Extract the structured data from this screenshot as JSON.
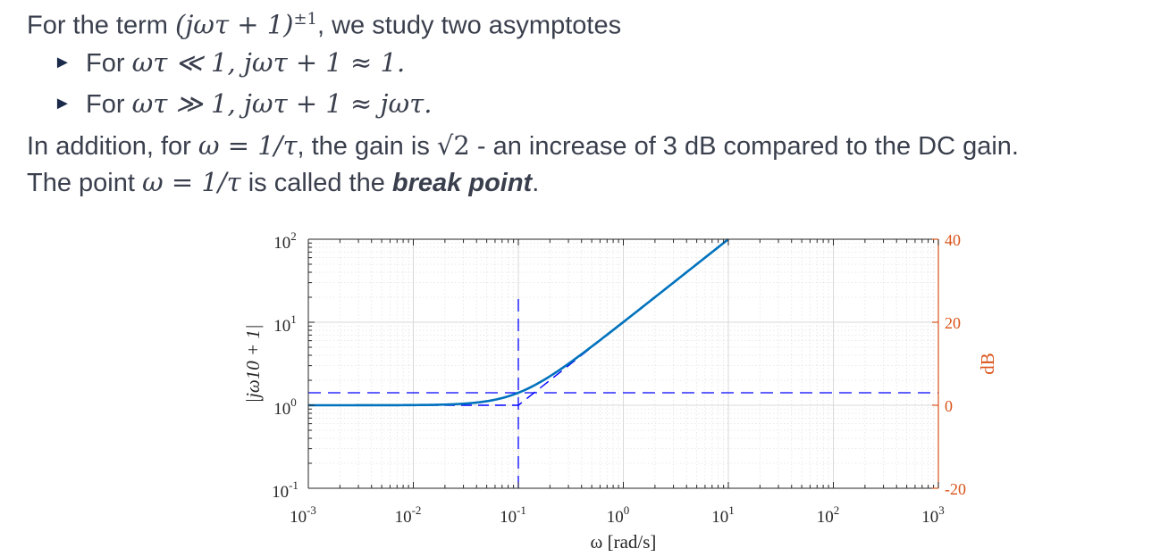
{
  "text": {
    "intro_a": "For the term ",
    "intro_expr": "(jωτ + 1)",
    "intro_sup": "±1",
    "intro_b": ", we study two asymptotes",
    "b1_a": "For ",
    "b1_expr": "ωτ ≪ 1, jωτ + 1 ≈ 1.",
    "b2_a": "For ",
    "b2_expr": "ωτ ≫ 1, jωτ + 1 ≈ jωτ.",
    "add_a": "In addition, for ",
    "add_expr": "ω = 1/τ",
    "add_b": ", the gain is ",
    "add_sqrt": "√2",
    "add_c": " - an increase of 3 dB compared to the DC gain.",
    "bp_a": "The point ",
    "bp_expr": "ω = 1/τ",
    "bp_b": " is called the ",
    "bp_bold": "break point",
    "bp_c": "."
  },
  "chart_data": {
    "type": "line",
    "xscale": "log",
    "yscale": "log",
    "xlim": [
      0.001,
      1000
    ],
    "ylim_left": [
      0.1,
      100
    ],
    "ylim_right": [
      -20,
      40
    ],
    "xlabel": "ω [rad/s]",
    "ylabel_left": "|jω10 + 1|",
    "ylabel_right": "dB",
    "grid": true,
    "x_ticks": [
      {
        "base": "10",
        "exp": "-3",
        "value": 0.001
      },
      {
        "base": "10",
        "exp": "-2",
        "value": 0.01
      },
      {
        "base": "10",
        "exp": "-1",
        "value": 0.1
      },
      {
        "base": "10",
        "exp": "0",
        "value": 1
      },
      {
        "base": "10",
        "exp": "1",
        "value": 10
      },
      {
        "base": "10",
        "exp": "2",
        "value": 100
      },
      {
        "base": "10",
        "exp": "3",
        "value": 1000
      }
    ],
    "y_ticks_left": [
      {
        "base": "10",
        "exp": "-1",
        "value": 0.1
      },
      {
        "base": "10",
        "exp": "0",
        "value": 1
      },
      {
        "base": "10",
        "exp": "1",
        "value": 10
      },
      {
        "base": "10",
        "exp": "2",
        "value": 100
      }
    ],
    "y_ticks_right": [
      "-20",
      "0",
      "20",
      "40"
    ],
    "tau": 10,
    "series": [
      {
        "style": "solid",
        "color": "#0072bd",
        "function": "|jω·10 + 1|"
      },
      {
        "style": "dashed",
        "color": "#0000ff",
        "values": [
          [
            0.001,
            1
          ],
          [
            0.1,
            1
          ],
          [
            10,
            100
          ]
        ]
      }
    ],
    "guides": {
      "break_x": 0.1,
      "sqrt2_level": 1.4142,
      "color": "#0000ff"
    },
    "colors": {
      "curve": "#0072bd",
      "asymptote": "#0000ff",
      "right_axis": "#d95319",
      "grid": "#d9d9d9",
      "axis": "#262626"
    }
  }
}
